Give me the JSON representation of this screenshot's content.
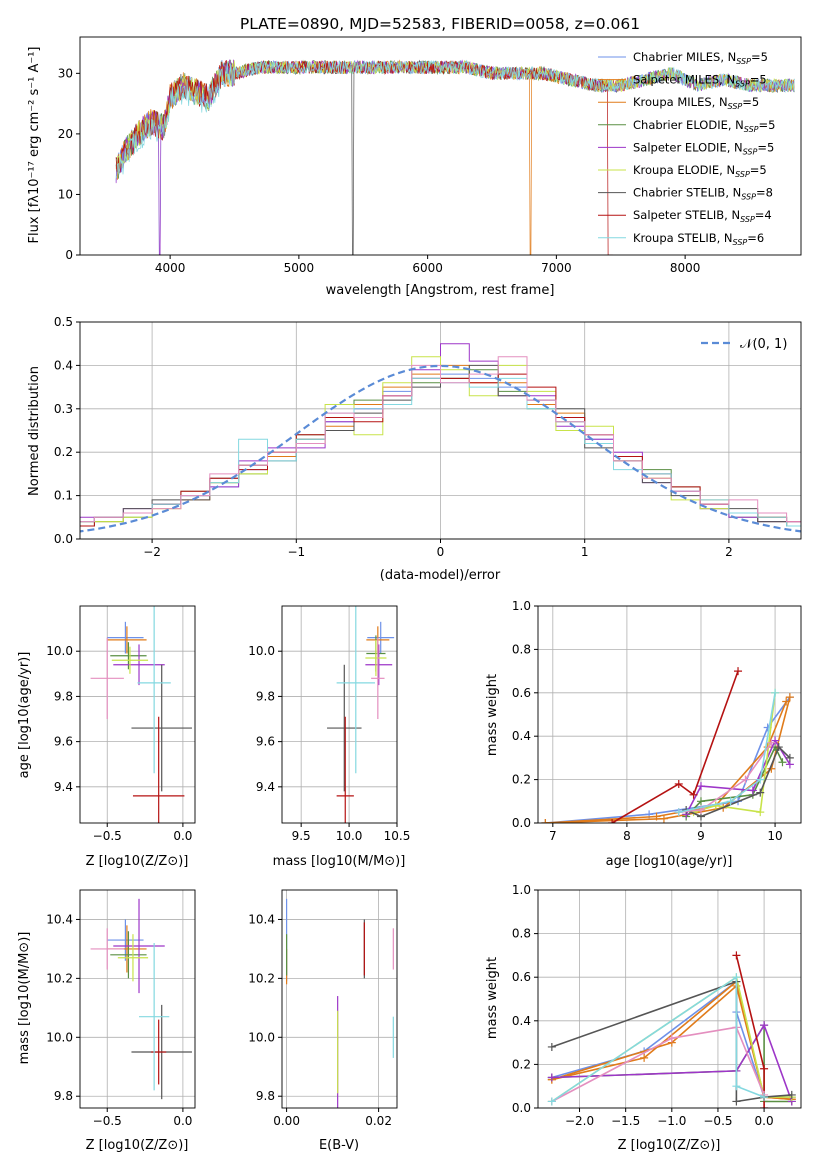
{
  "title": "PLATE=0890, MJD=52583, FIBERID=0058, z=0.061",
  "colors": [
    "#6e91e8",
    "#e07b1a",
    "#5a8f43",
    "#9d36c8",
    "#c8e34a",
    "#555555",
    "#b51212",
    "#84d8e0",
    "#e48fbf"
  ],
  "panels": {
    "spectrum": {
      "xlabel": "wavelength [Angstrom, rest frame]",
      "ylabel": "Flux [fλ10⁻¹⁷ erg cm⁻² s⁻¹ A⁻¹]",
      "xticks": [
        "4000",
        "5000",
        "6000",
        "7000",
        "8000"
      ],
      "yticks": [
        "0",
        "10",
        "20",
        "30"
      ]
    },
    "residuals": {
      "xlabel": "(data-model)/error",
      "ylabel": "Normed distribution",
      "xticks": [
        "−2",
        "−1",
        "0",
        "1",
        "2"
      ],
      "yticks": [
        "0.0",
        "0.1",
        "0.2",
        "0.3",
        "0.4",
        "0.5"
      ],
      "normal_label": "𝒩(0, 1)"
    },
    "age_vs_z": {
      "xlabel": "Z [log10(Z/Z⊙)]",
      "ylabel": "age  [log10(age/yr)]",
      "xticks": [
        "−0.5",
        "0.0"
      ],
      "yticks": [
        "9.4",
        "9.6",
        "9.8",
        "10.0"
      ]
    },
    "age_vs_mass": {
      "xlabel": "mass [log10(M/M⊙)]",
      "xticks": [
        "9.5",
        "10.0",
        "10.5"
      ],
      "yticks": [
        "9.4",
        "9.6",
        "9.8",
        "10.0"
      ]
    },
    "weight_vs_age": {
      "xlabel": "age  [log10(age/yr)]",
      "ylabel": "mass weight",
      "xticks": [
        "7",
        "8",
        "9",
        "10"
      ],
      "yticks": [
        "0.0",
        "0.2",
        "0.4",
        "0.6",
        "0.8",
        "1.0"
      ]
    },
    "mass_vs_z": {
      "xlabel": "Z [log10(Z/Z⊙)]",
      "ylabel": "mass [log10(M/M⊙)]",
      "xticks": [
        "−0.5",
        "0.0"
      ],
      "yticks": [
        "9.8",
        "10.0",
        "10.2",
        "10.4"
      ]
    },
    "mass_vs_ebv": {
      "xlabel": "E(B-V)",
      "xticks": [
        "0.00",
        "0.02"
      ],
      "yticks": [
        "9.8",
        "10.0",
        "10.2",
        "10.4"
      ]
    },
    "weight_vs_z": {
      "xlabel": "Z [log10(Z/Z⊙)]",
      "ylabel": "mass weight",
      "xticks": [
        "−2.0",
        "−1.5",
        "−1.0",
        "−0.5",
        "0.0"
      ],
      "yticks": [
        "0.0",
        "0.2",
        "0.4",
        "0.6",
        "0.8",
        "1.0"
      ]
    }
  },
  "legend": [
    {
      "label": "Chabrier MILES, N",
      "sub": "SSP",
      "suffix": "=5"
    },
    {
      "label": "Salpeter MILES, N",
      "sub": "SSP",
      "suffix": "=5"
    },
    {
      "label": "Kroupa MILES, N",
      "sub": "SSP",
      "suffix": "=5"
    },
    {
      "label": "Chabrier ELODIE, N",
      "sub": "SSP",
      "suffix": "=5"
    },
    {
      "label": "Salpeter ELODIE, N",
      "sub": "SSP",
      "suffix": "=5"
    },
    {
      "label": "Kroupa ELODIE, N",
      "sub": "SSP",
      "suffix": "=5"
    },
    {
      "label": "Chabrier STELIB, N",
      "sub": "SSP",
      "suffix": "=8"
    },
    {
      "label": "Salpeter STELIB, N",
      "sub": "SSP",
      "suffix": "=4"
    },
    {
      "label": "Kroupa STELIB, N",
      "sub": "SSP",
      "suffix": "=6"
    }
  ],
  "chart_data": [
    {
      "type": "line",
      "panel": "spectrum",
      "xlim": [
        3300,
        8900
      ],
      "ylim": [
        0,
        36
      ],
      "grid": false,
      "legend_position": "right",
      "x": [
        3580,
        3650,
        3750,
        3850,
        3950,
        4000,
        4100,
        4200,
        4300,
        4400,
        4500,
        4700,
        4900,
        5100,
        5300,
        5500,
        5700,
        5900,
        6100,
        6300,
        6500,
        6700,
        6900,
        7100,
        7300,
        7500,
        7700,
        7900,
        8100,
        8300,
        8500,
        8700
      ],
      "y": [
        14,
        17,
        20,
        22,
        21,
        26,
        28,
        27,
        26,
        30,
        30,
        31,
        31,
        31,
        31,
        31,
        31,
        31,
        31,
        31,
        30,
        30,
        30,
        29,
        28,
        28,
        29,
        30,
        28,
        29,
        28,
        28
      ]
    },
    {
      "type": "bar",
      "panel": "residuals",
      "xlim": [
        -2.5,
        2.5
      ],
      "ylim": [
        0,
        0.5
      ],
      "grid": true,
      "legend_position": "top-right",
      "bin_edges": [
        -2.6,
        -2.4,
        -2.2,
        -2.0,
        -1.8,
        -1.6,
        -1.4,
        -1.2,
        -1.0,
        -0.8,
        -0.6,
        -0.4,
        -0.2,
        0.0,
        0.2,
        0.4,
        0.6,
        0.8,
        1.0,
        1.2,
        1.4,
        1.6,
        1.8,
        2.0,
        2.2,
        2.4,
        2.6
      ],
      "series": [
        {
          "values": [
            0.04,
            0.05,
            0.06,
            0.08,
            0.1,
            0.12,
            0.16,
            0.19,
            0.22,
            0.27,
            0.3,
            0.34,
            0.37,
            0.38,
            0.37,
            0.35,
            0.32,
            0.28,
            0.23,
            0.19,
            0.15,
            0.11,
            0.08,
            0.06,
            0.05,
            0.04
          ]
        },
        {
          "values": [
            0.04,
            0.04,
            0.06,
            0.07,
            0.09,
            0.13,
            0.17,
            0.19,
            0.23,
            0.26,
            0.31,
            0.35,
            0.38,
            0.4,
            0.36,
            0.36,
            0.31,
            0.29,
            0.22,
            0.19,
            0.14,
            0.11,
            0.09,
            0.06,
            0.04,
            0.03
          ]
        },
        {
          "values": [
            0.03,
            0.04,
            0.05,
            0.08,
            0.11,
            0.13,
            0.15,
            0.2,
            0.24,
            0.28,
            0.32,
            0.33,
            0.36,
            0.37,
            0.39,
            0.34,
            0.3,
            0.27,
            0.24,
            0.18,
            0.16,
            0.12,
            0.07,
            0.05,
            0.04,
            0.03
          ]
        },
        {
          "values": [
            0.05,
            0.05,
            0.07,
            0.08,
            0.1,
            0.12,
            0.18,
            0.21,
            0.21,
            0.27,
            0.3,
            0.33,
            0.39,
            0.45,
            0.41,
            0.33,
            0.33,
            0.26,
            0.23,
            0.2,
            0.13,
            0.11,
            0.07,
            0.05,
            0.04,
            0.04
          ]
        },
        {
          "values": [
            0.04,
            0.04,
            0.05,
            0.07,
            0.1,
            0.13,
            0.15,
            0.2,
            0.22,
            0.31,
            0.24,
            0.36,
            0.42,
            0.39,
            0.33,
            0.4,
            0.34,
            0.25,
            0.26,
            0.18,
            0.14,
            0.09,
            0.07,
            0.06,
            0.05,
            0.03
          ]
        },
        {
          "values": [
            0.04,
            0.05,
            0.07,
            0.09,
            0.09,
            0.14,
            0.17,
            0.18,
            0.23,
            0.25,
            0.29,
            0.32,
            0.35,
            0.37,
            0.4,
            0.33,
            0.32,
            0.3,
            0.21,
            0.18,
            0.13,
            0.1,
            0.08,
            0.07,
            0.04,
            0.03
          ]
        },
        {
          "values": [
            0.03,
            0.05,
            0.06,
            0.08,
            0.11,
            0.14,
            0.16,
            0.2,
            0.24,
            0.28,
            0.27,
            0.33,
            0.37,
            0.37,
            0.36,
            0.38,
            0.35,
            0.28,
            0.24,
            0.19,
            0.15,
            0.12,
            0.08,
            0.06,
            0.05,
            0.04
          ]
        },
        {
          "values": [
            0.04,
            0.05,
            0.06,
            0.08,
            0.1,
            0.13,
            0.23,
            0.18,
            0.23,
            0.29,
            0.3,
            0.31,
            0.37,
            0.36,
            0.35,
            0.37,
            0.3,
            0.27,
            0.22,
            0.16,
            0.15,
            0.11,
            0.09,
            0.06,
            0.05,
            0.03
          ]
        },
        {
          "values": [
            0.04,
            0.05,
            0.06,
            0.07,
            0.1,
            0.15,
            0.17,
            0.2,
            0.22,
            0.29,
            0.28,
            0.33,
            0.4,
            0.36,
            0.38,
            0.42,
            0.32,
            0.27,
            0.24,
            0.18,
            0.14,
            0.11,
            0.08,
            0.09,
            0.06,
            0.04
          ]
        }
      ],
      "normal_curve": {
        "mean": 0,
        "sigma": 1
      }
    },
    {
      "type": "scatter",
      "panel": "age_vs_z",
      "xlim": [
        -0.68,
        0.08
      ],
      "ylim": [
        9.24,
        10.2
      ],
      "grid": true,
      "points": [
        {
          "x": -0.38,
          "y": 10.06,
          "xerr": 0.12,
          "yerr": 0.07
        },
        {
          "x": -0.37,
          "y": 10.05,
          "xerr": 0.13,
          "yerr": 0.06
        },
        {
          "x": -0.36,
          "y": 9.98,
          "xerr": 0.12,
          "yerr": 0.06
        },
        {
          "x": -0.29,
          "y": 9.94,
          "xerr": 0.17,
          "yerr": 0.09
        },
        {
          "x": -0.35,
          "y": 9.96,
          "xerr": 0.12,
          "yerr": 0.06
        },
        {
          "x": -0.14,
          "y": 9.66,
          "xerr": 0.2,
          "yerr": 0.28
        },
        {
          "x": -0.16,
          "y": 9.36,
          "xerr": 0.17,
          "yerr": 0.35
        },
        {
          "x": -0.19,
          "y": 9.86,
          "xerr": 0.11,
          "yerr": 0.4
        },
        {
          "x": -0.5,
          "y": 9.88,
          "xerr": 0.11,
          "yerr": 0.18
        }
      ]
    },
    {
      "type": "scatter",
      "panel": "age_vs_mass",
      "xlim": [
        9.3,
        10.5
      ],
      "ylim": [
        9.24,
        10.2
      ],
      "grid": true,
      "points": [
        {
          "x": 10.33,
          "y": 10.06,
          "xerr": 0.14,
          "yerr": 0.07
        },
        {
          "x": 10.3,
          "y": 10.05,
          "xerr": 0.12,
          "yerr": 0.06
        },
        {
          "x": 10.28,
          "y": 9.99,
          "xerr": 0.1,
          "yerr": 0.08
        },
        {
          "x": 10.31,
          "y": 9.94,
          "xerr": 0.14,
          "yerr": 0.09
        },
        {
          "x": 10.28,
          "y": 9.97,
          "xerr": 0.11,
          "yerr": 0.08
        },
        {
          "x": 9.95,
          "y": 9.66,
          "xerr": 0.18,
          "yerr": 0.28
        },
        {
          "x": 9.96,
          "y": 9.36,
          "xerr": 0.09,
          "yerr": 0.35
        },
        {
          "x": 10.07,
          "y": 9.86,
          "xerr": 0.2,
          "yerr": 0.4
        },
        {
          "x": 10.3,
          "y": 9.88,
          "xerr": 0.07,
          "yerr": 0.18
        }
      ]
    },
    {
      "type": "line",
      "panel": "weight_vs_age",
      "xlim": [
        6.8,
        10.35
      ],
      "ylim": [
        0,
        1.0
      ],
      "grid": true,
      "series": [
        {
          "x": [
            6.9,
            8.3,
            9.5,
            9.9,
            10.2
          ],
          "y": [
            0.0,
            0.04,
            0.1,
            0.44,
            0.58
          ]
        },
        {
          "x": [
            6.9,
            8.5,
            9.3,
            9.95,
            10.2
          ],
          "y": [
            0.0,
            0.02,
            0.07,
            0.25,
            0.58
          ]
        },
        {
          "x": [
            6.9,
            8.4,
            9.2,
            9.9,
            10.15
          ],
          "y": [
            0.0,
            0.03,
            0.08,
            0.35,
            0.56
          ]
        },
        {
          "x": [
            8.8,
            9.0,
            9.7,
            10.0,
            10.1
          ],
          "y": [
            0.03,
            0.1,
            0.13,
            0.35,
            0.28
          ]
        },
        {
          "x": [
            8.8,
            9.0,
            9.7,
            10.0,
            10.2
          ],
          "y": [
            0.04,
            0.17,
            0.15,
            0.38,
            0.27
          ]
        },
        {
          "x": [
            8.9,
            9.2,
            9.8,
            10.0
          ],
          "y": [
            0.05,
            0.08,
            0.05,
            0.6
          ]
        },
        {
          "x": [
            8.8,
            9.0,
            9.8,
            10.05,
            10.2
          ],
          "y": [
            0.06,
            0.03,
            0.14,
            0.35,
            0.3
          ]
        },
        {
          "x": [
            7.8,
            8.7,
            8.9,
            9.5
          ],
          "y": [
            0.0,
            0.18,
            0.13,
            0.7
          ]
        },
        {
          "x": [
            8.7,
            9.0,
            9.6,
            9.95
          ],
          "y": [
            0.05,
            0.06,
            0.2,
            0.37
          ]
        },
        {
          "x": [
            8.7,
            9.4,
            9.8,
            10.0
          ],
          "y": [
            0.05,
            0.1,
            0.2,
            0.6
          ]
        }
      ]
    },
    {
      "type": "scatter",
      "panel": "mass_vs_z",
      "xlim": [
        -0.68,
        0.08
      ],
      "ylim": [
        9.76,
        10.5
      ],
      "grid": true,
      "points": [
        {
          "x": -0.38,
          "y": 10.33,
          "xerr": 0.12,
          "yerr": 0.07
        },
        {
          "x": -0.37,
          "y": 10.3,
          "xerr": 0.13,
          "yerr": 0.08
        },
        {
          "x": -0.36,
          "y": 10.28,
          "xerr": 0.12,
          "yerr": 0.08
        },
        {
          "x": -0.29,
          "y": 10.31,
          "xerr": 0.17,
          "yerr": 0.16
        },
        {
          "x": -0.33,
          "y": 10.27,
          "xerr": 0.1,
          "yerr": 0.08
        },
        {
          "x": -0.14,
          "y": 9.95,
          "xerr": 0.2,
          "yerr": 0.16
        },
        {
          "x": -0.16,
          "y": 9.95,
          "xerr": 0.05,
          "yerr": 0.11
        },
        {
          "x": -0.19,
          "y": 10.07,
          "xerr": 0.1,
          "yerr": 0.25
        },
        {
          "x": -0.5,
          "y": 10.3,
          "xerr": 0.11,
          "yerr": 0.07
        }
      ]
    },
    {
      "type": "scatter",
      "panel": "mass_vs_ebv",
      "xlim": [
        -0.001,
        0.024
      ],
      "ylim": [
        9.76,
        10.5
      ],
      "grid": true,
      "points": [
        {
          "x": 0.0,
          "y": 10.33,
          "yerr": 0.14
        },
        {
          "x": 0.0,
          "y": 10.24,
          "yerr": 0.06
        },
        {
          "x": 0.0,
          "y": 10.28,
          "yerr": 0.07
        },
        {
          "x": 0.0111,
          "y": 9.95,
          "yerr": 0.19
        },
        {
          "x": 0.0111,
          "y": 9.95,
          "yerr": 0.14
        },
        {
          "x": 0.0169,
          "y": 10.3,
          "yerr": 0.1
        },
        {
          "x": 0.0169,
          "y": 10.3,
          "yerr": 0.09
        },
        {
          "x": 0.0232,
          "y": 10.0,
          "yerr": 0.07
        },
        {
          "x": 0.0232,
          "y": 10.3,
          "yerr": 0.07
        }
      ]
    },
    {
      "type": "line",
      "panel": "weight_vs_z",
      "xlim": [
        -2.45,
        0.4
      ],
      "ylim": [
        0,
        1.0
      ],
      "grid": true,
      "series": [
        {
          "x": [
            -2.3,
            -1.3,
            -0.3,
            -0.3,
            0.0,
            0.3
          ],
          "y": [
            0.14,
            0.26,
            0.58,
            0.44,
            0.05,
            0.05
          ]
        },
        {
          "x": [
            -2.3,
            -1.3,
            -0.3,
            0.0,
            0.3
          ],
          "y": [
            0.13,
            0.23,
            0.58,
            0.05,
            0.04
          ]
        },
        {
          "x": [
            -2.3,
            -1.0,
            -0.3,
            0.0,
            0.3
          ],
          "y": [
            0.13,
            0.3,
            0.56,
            0.05,
            0.04
          ]
        },
        {
          "x": [
            -2.3,
            -0.3,
            0.0,
            0.0,
            0.3
          ],
          "y": [
            0.14,
            0.17,
            0.38,
            0.03,
            0.03
          ]
        },
        {
          "x": [
            -2.3,
            -0.3,
            0.0,
            0.3
          ],
          "y": [
            0.14,
            0.17,
            0.38,
            0.03
          ]
        },
        {
          "x": [
            -2.3,
            -0.3,
            0.0,
            0.3
          ],
          "y": [
            0.03,
            0.6,
            0.05,
            0.05
          ]
        },
        {
          "x": [
            -2.3,
            -0.3,
            -0.3,
            0.0,
            0.3
          ],
          "y": [
            0.28,
            0.58,
            0.03,
            0.05,
            0.06
          ]
        },
        {
          "x": [
            -0.3,
            0.0,
            0.0
          ],
          "y": [
            0.7,
            0.18,
            0.0
          ]
        },
        {
          "x": [
            -2.3,
            -1.0,
            -0.3,
            0.0
          ],
          "y": [
            0.03,
            0.32,
            0.37,
            0.06
          ]
        },
        {
          "x": [
            -2.3,
            -0.3,
            -0.3,
            0.0
          ],
          "y": [
            0.03,
            0.6,
            0.1,
            0.05
          ]
        }
      ]
    }
  ]
}
